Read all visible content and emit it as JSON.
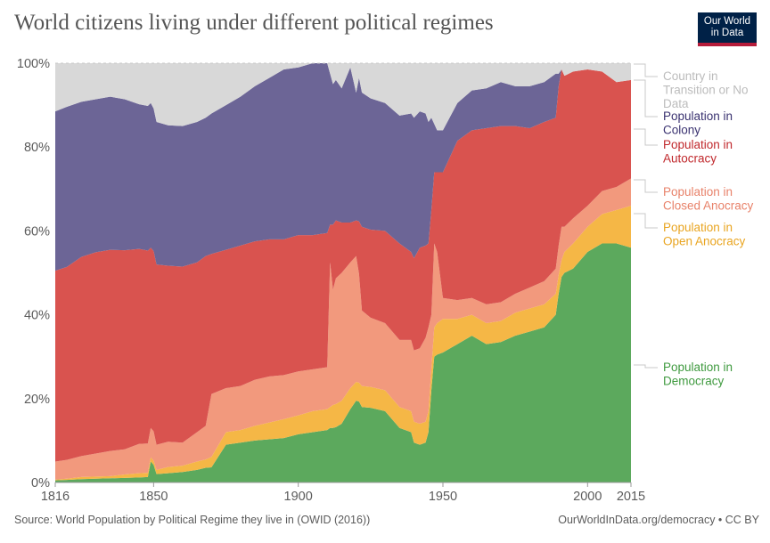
{
  "title": "World citizens living under different political regimes",
  "logo": {
    "line1": "Our World",
    "line2": "in Data"
  },
  "source": "Source: World Population by Political Regime they live in (OWID (2016))",
  "attribution": "OurWorldInData.org/democracy • CC BY",
  "chart_data": {
    "type": "area",
    "stacked": true,
    "xlim": [
      1816,
      2015
    ],
    "ylim": [
      0,
      100
    ],
    "x_ticks": [
      "1816",
      "1850",
      "1900",
      "1950",
      "2000",
      "2015"
    ],
    "y_ticks": [
      "0%",
      "20%",
      "40%",
      "60%",
      "80%",
      "100%"
    ],
    "x": [
      1816,
      1820,
      1825,
      1830,
      1835,
      1840,
      1845,
      1848,
      1849,
      1850,
      1851,
      1855,
      1860,
      1865,
      1868,
      1870,
      1875,
      1880,
      1885,
      1890,
      1895,
      1900,
      1905,
      1910,
      1911,
      1912,
      1913,
      1915,
      1918,
      1920,
      1921,
      1922,
      1925,
      1930,
      1935,
      1939,
      1940,
      1942,
      1944,
      1945,
      1946,
      1947,
      1948,
      1950,
      1955,
      1960,
      1965,
      1970,
      1975,
      1980,
      1985,
      1989,
      1990,
      1991,
      1992,
      1995,
      2000,
      2005,
      2010,
      2015
    ],
    "series": [
      {
        "name": "Population in Democracy",
        "color": "#5ca95d",
        "values": [
          0.5,
          0.6,
          0.8,
          0.9,
          1.0,
          1.1,
          1.2,
          1.3,
          5.0,
          4.2,
          2.0,
          2.2,
          2.5,
          3.0,
          3.5,
          3.6,
          9.0,
          9.5,
          10.0,
          10.3,
          10.6,
          11.5,
          12.0,
          12.5,
          13.0,
          13.0,
          13.2,
          14.0,
          17.5,
          19.5,
          19.3,
          18.0,
          17.8,
          17.0,
          13.0,
          12.0,
          9.5,
          9.0,
          9.5,
          12.0,
          22.0,
          30.0,
          30.5,
          31.0,
          33.0,
          35.0,
          33.0,
          33.5,
          35.0,
          36.0,
          37.0,
          40.0,
          45.0,
          49.0,
          50.0,
          51.0,
          55.0,
          57.0,
          57.0,
          56.0
        ]
      },
      {
        "name": "Population in Open Anocracy",
        "color": "#f5b746",
        "values": [
          0.2,
          0.3,
          0.5,
          0.5,
          0.5,
          0.8,
          1.0,
          1.0,
          1.0,
          1.0,
          1.0,
          1.5,
          1.5,
          2.0,
          2.0,
          2.5,
          3.0,
          3.0,
          3.5,
          4.0,
          4.5,
          4.5,
          5.0,
          5.0,
          5.0,
          5.5,
          5.5,
          5.5,
          5.0,
          4.5,
          4.5,
          5.0,
          5.0,
          5.0,
          5.0,
          5.0,
          5.0,
          5.0,
          5.0,
          5.0,
          5.0,
          7.0,
          7.5,
          8.0,
          6.0,
          5.0,
          5.0,
          5.0,
          5.5,
          5.5,
          5.5,
          5.0,
          4.5,
          4.0,
          5.0,
          6.0,
          6.0,
          7.0,
          8.0,
          10.0
        ]
      },
      {
        "name": "Population in Closed Anocracy",
        "color": "#f2997d",
        "values": [
          4.3,
          4.5,
          5.0,
          5.5,
          6.0,
          6.0,
          7.0,
          7.0,
          7.0,
          7.0,
          6.0,
          6.0,
          5.5,
          7.0,
          8.0,
          15.0,
          10.5,
          10.5,
          11.0,
          11.0,
          10.5,
          10.5,
          10.0,
          10.0,
          34.5,
          27.5,
          30.0,
          30.5,
          30.0,
          30.0,
          26.0,
          18.0,
          16.5,
          16.0,
          16.0,
          17.0,
          17.0,
          18.0,
          20.0,
          20.0,
          13.0,
          20.0,
          17.0,
          5.0,
          4.5,
          4.0,
          4.5,
          4.5,
          4.5,
          5.0,
          5.5,
          6.0,
          7.0,
          8.0,
          6.0,
          6.0,
          5.0,
          5.5,
          5.5,
          6.5
        ]
      },
      {
        "name": "Population in Autocracy",
        "color": "#d9534f",
        "values": [
          45.5,
          46.0,
          47.5,
          48.0,
          48.0,
          47.5,
          46.5,
          46.0,
          43.0,
          43.0,
          43.0,
          42.0,
          42.0,
          40.5,
          40.5,
          33.4,
          33.0,
          33.5,
          33.0,
          32.7,
          32.4,
          32.5,
          32.0,
          32.0,
          9.0,
          15.5,
          13.8,
          12.0,
          9.5,
          8.5,
          12.5,
          20.0,
          21.0,
          22.0,
          23.0,
          21.0,
          22.0,
          24.0,
          22.0,
          20.0,
          25.0,
          17.0,
          19.0,
          30.0,
          38.0,
          40.0,
          42.0,
          42.0,
          40.0,
          38.0,
          38.0,
          36.0,
          38.0,
          37.5,
          36.0,
          35.0,
          32.5,
          28.5,
          25.0,
          23.5
        ]
      },
      {
        "name": "Population in Colony",
        "color": "#6c6596",
        "values": [
          38.0,
          38.2,
          37.0,
          36.5,
          36.5,
          36.0,
          34.5,
          34.5,
          34.5,
          34.0,
          34.0,
          33.5,
          33.5,
          33.5,
          33.0,
          33.5,
          34.5,
          35.5,
          37.0,
          38.5,
          40.5,
          40.0,
          41.5,
          42.5,
          36.0,
          33.5,
          33.5,
          32.0,
          37.0,
          30.5,
          34.2,
          32.0,
          31.3,
          30.5,
          30.5,
          33.0,
          33.5,
          32.5,
          31.5,
          29.0,
          22.0,
          11.5,
          10.0,
          10.0,
          9.0,
          9.5,
          9.5,
          10.5,
          9.5,
          10.0,
          9.5,
          10.5,
          3.0,
          0.0,
          0.0,
          0.0,
          0.0,
          0.0,
          0.0,
          0.0
        ]
      },
      {
        "name": "Country in Transition or No Data",
        "color": "#d8d8d8",
        "values": [
          11.5,
          10.4,
          9.2,
          8.6,
          8.0,
          8.6,
          9.8,
          10.2,
          9.5,
          10.8,
          14.0,
          14.8,
          15.0,
          14.0,
          13.0,
          12.0,
          10.0,
          8.0,
          5.5,
          3.5,
          1.5,
          1.0,
          -0.5,
          -1.5,
          3.0,
          5.0,
          4.0,
          6.0,
          1.0,
          7.0,
          2.0,
          7.0,
          8.4,
          9.5,
          12.5,
          12.0,
          13.0,
          11.5,
          12.0,
          14.0,
          13.0,
          14.5,
          16.0,
          16.0,
          9.5,
          6.5,
          6.0,
          4.5,
          5.5,
          5.5,
          4.5,
          2.5,
          2.5,
          1.5,
          3.0,
          2.0,
          1.5,
          2.0,
          4.5,
          4.0
        ]
      }
    ],
    "legend": [
      {
        "line1": "Country in",
        "line2": "Transition or No",
        "line3": "Data",
        "color": "#bcbcbc"
      },
      {
        "line1": "Population in",
        "line2": "Colony",
        "color": "#3a3270"
      },
      {
        "line1": "Population in",
        "line2": "Autocracy",
        "color": "#c0282c"
      },
      {
        "line1": "Population in",
        "line2": "Closed Anocracy",
        "color": "#e8826a"
      },
      {
        "line1": "Population in",
        "line2": "Open Anocracy",
        "color": "#e9a521"
      },
      {
        "line1": "Population in",
        "line2": "Democracy",
        "color": "#3f9a3f"
      }
    ]
  }
}
